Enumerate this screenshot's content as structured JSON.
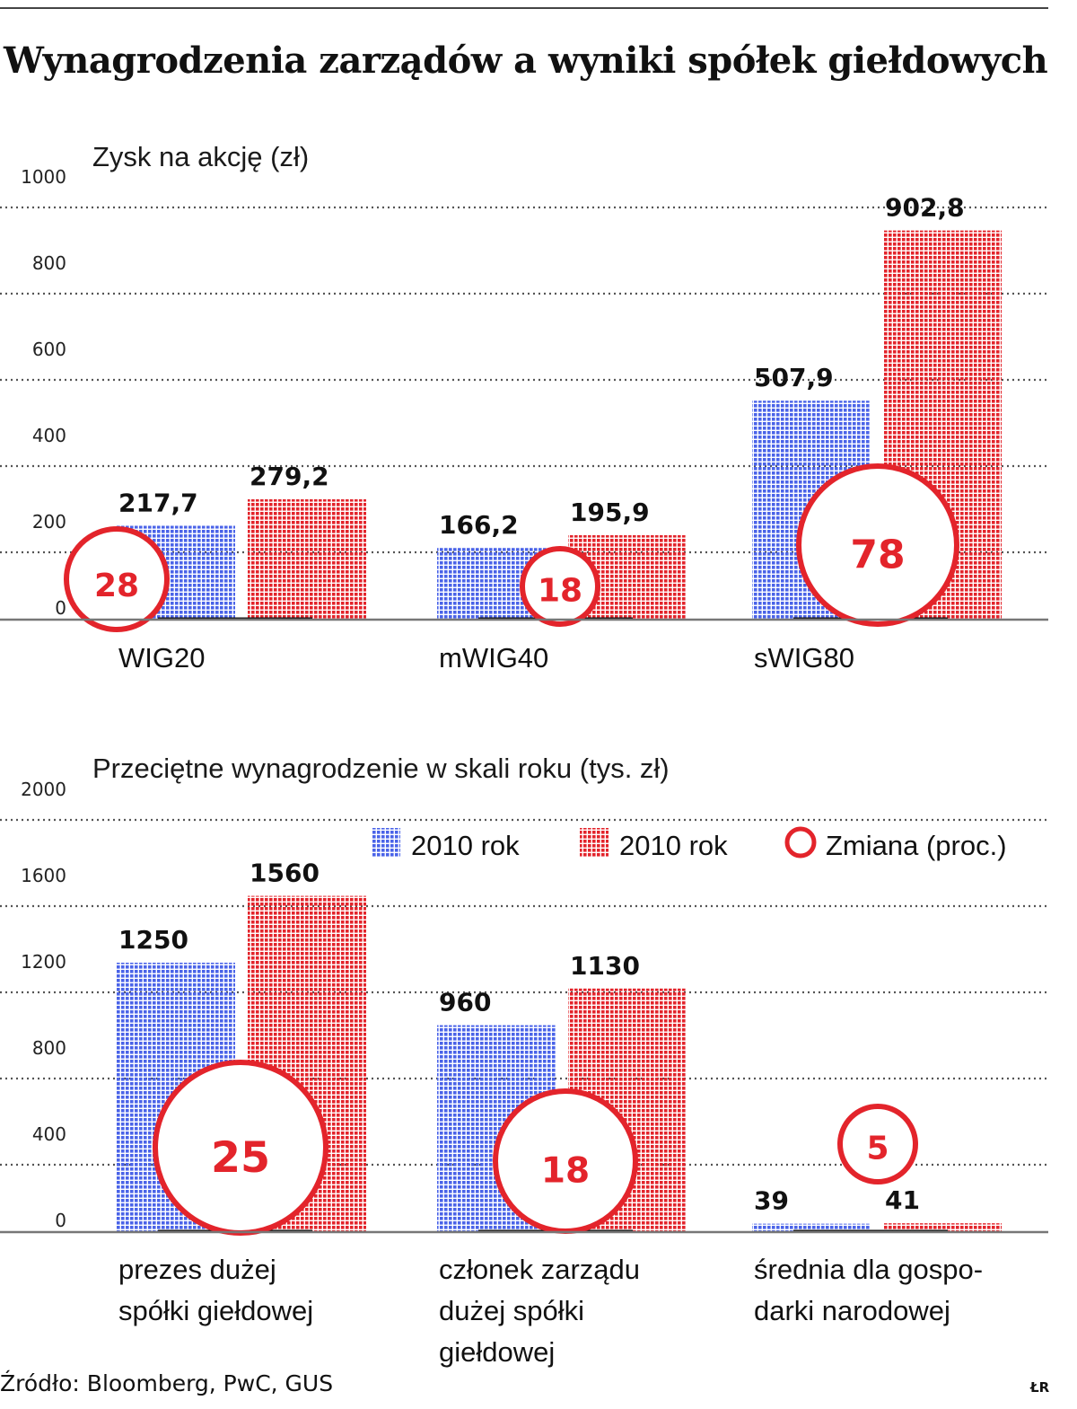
{
  "title": "Wynagrodzenia zarządów a wyniki spółek giełdowych",
  "source": "Źródło: Bloomberg, PwC, GUS",
  "credit": "ŁR",
  "colors": {
    "series_2010": "#4a63e8",
    "series_red": "#e3242b",
    "change_circle": "#e3242b",
    "grid": "#555555"
  },
  "legend": [
    {
      "label": "2010 rok",
      "kind": "bar",
      "color": "#4a63e8"
    },
    {
      "label": "2010 rok",
      "kind": "bar",
      "color": "#e3242b"
    },
    {
      "label": "Zmiana (proc.)",
      "kind": "circle",
      "color": "#e3242b"
    }
  ],
  "chart_data": [
    {
      "type": "bar",
      "title": "Zysk na akcję (zł)",
      "ylim": [
        0,
        1000
      ],
      "yticks": [
        "0",
        "200",
        "400",
        "600",
        "800",
        "1000"
      ],
      "grid": true,
      "categories": [
        "WIG20",
        "mWIG40",
        "sWIG80"
      ],
      "series": [
        {
          "name": "2010 rok",
          "values": [
            217.7,
            166.2,
            507.9
          ],
          "labels": [
            "217,7",
            "166,2",
            "507,9"
          ]
        },
        {
          "name": "2010 rok",
          "values": [
            279.2,
            195.9,
            902.8
          ],
          "labels": [
            "279,2",
            "195,9",
            "902,8"
          ]
        }
      ],
      "change_percent": [
        28,
        18,
        78
      ]
    },
    {
      "type": "bar",
      "title": "Przeciętne wynagrodzenie w skali roku (tys. zł)",
      "ylim": [
        0,
        2000
      ],
      "yticks": [
        "0",
        "400",
        "800",
        "1200",
        "1600",
        "2000"
      ],
      "grid": true,
      "legend_position": "top-right",
      "categories": [
        [
          "prezes dużej",
          "spółki giełdowej"
        ],
        [
          "członek zarządu",
          "dużej spółki",
          "giełdowej"
        ],
        [
          "średnia dla gospo-",
          "darki narodowej"
        ]
      ],
      "series": [
        {
          "name": "2010 rok",
          "values": [
            1250,
            960,
            39
          ],
          "labels": [
            "1250",
            "960",
            "39"
          ]
        },
        {
          "name": "2010 rok",
          "values": [
            1560,
            1130,
            41
          ],
          "labels": [
            "1560",
            "1130",
            "41"
          ]
        }
      ],
      "change_percent": [
        25,
        18,
        5
      ]
    }
  ]
}
